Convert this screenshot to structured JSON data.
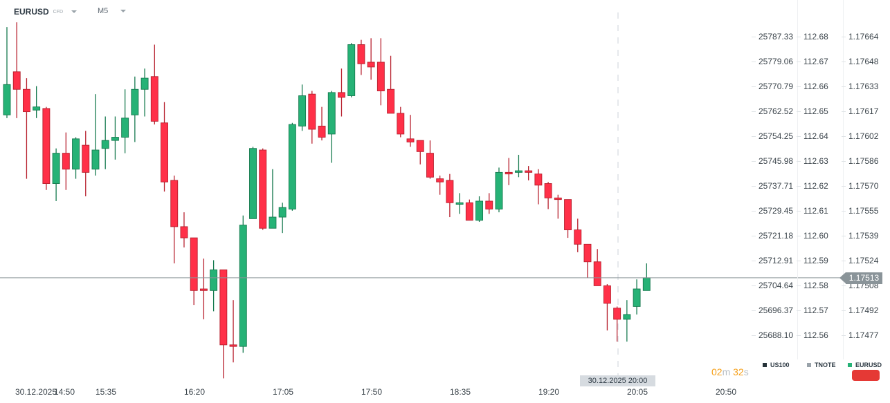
{
  "header": {
    "symbol": "EURUSD",
    "symbol_type": "CFD",
    "timeframe": "M5"
  },
  "colors": {
    "up": "#26b276",
    "up_border": "#167a4f",
    "down": "#ff3048",
    "down_border": "#b7202e",
    "price_line": "#8a9499",
    "countdown": "#f6a01a",
    "alert_button": "#e53935"
  },
  "axes": {
    "us100": [
      "25787.33",
      "25779.06",
      "25770.79",
      "25762.52",
      "25754.25",
      "25745.98",
      "25737.71",
      "25729.45",
      "25721.18",
      "25712.91",
      "25704.64",
      "25696.37",
      "25688.10"
    ],
    "tnote": [
      "112.68",
      "112.67",
      "112.66",
      "112.65",
      "112.64",
      "112.63",
      "112.62",
      "112.61",
      "112.60",
      "112.59",
      "112.58",
      "112.57",
      "112.56"
    ],
    "eurusd": [
      "1.17664",
      "1.17648",
      "1.17633",
      "1.17617",
      "1.17602",
      "1.17586",
      "1.17570",
      "1.17555",
      "1.17539",
      "1.17524",
      "1.17508",
      "1.17492",
      "1.17477"
    ]
  },
  "time_axis": [
    "30.12.2025",
    "14:50",
    "15:35",
    "16:20",
    "17:05",
    "17:50",
    "18:35",
    "19:20",
    "20:05",
    "20:50"
  ],
  "crosshair_label": "30.12.2025 20:00",
  "current_price": "1.17513",
  "countdown": {
    "min": "02",
    "min_unit": "m",
    "sec": "32",
    "sec_unit": "s"
  },
  "legend": [
    {
      "label": "US100",
      "color": "#263238"
    },
    {
      "label": "TNOTE",
      "color": "#9aa3aa"
    },
    {
      "label": "EURUSD",
      "color": "#26b276"
    }
  ],
  "chart_data": {
    "type": "candlestick",
    "symbol": "EURUSD",
    "interval": "5m",
    "first_time": "14:50",
    "ylim": [
      1.17445,
      1.1768
    ],
    "ohlc": [
      [
        1.17615,
        1.1767,
        1.17613,
        1.17634
      ],
      [
        1.17642,
        1.17673,
        1.17613,
        1.17631
      ],
      [
        1.17631,
        1.17638,
        1.17575,
        1.17617
      ],
      [
        1.17618,
        1.17633,
        1.17613,
        1.1762
      ],
      [
        1.17619,
        1.1762,
        1.17568,
        1.17572
      ],
      [
        1.17572,
        1.17594,
        1.17561,
        1.17591
      ],
      [
        1.17591,
        1.17604,
        1.17568,
        1.17581
      ],
      [
        1.17581,
        1.17601,
        1.17575,
        1.176
      ],
      [
        1.17596,
        1.17605,
        1.17564,
        1.17579
      ],
      [
        1.17581,
        1.17628,
        1.17577,
        1.17593
      ],
      [
        1.17594,
        1.17614,
        1.17581,
        1.17599
      ],
      [
        1.17599,
        1.17614,
        1.17587,
        1.17601
      ],
      [
        1.17601,
        1.17631,
        1.17591,
        1.17613
      ],
      [
        1.17615,
        1.17639,
        1.17598,
        1.17631
      ],
      [
        1.17631,
        1.17644,
        1.17614,
        1.17638
      ],
      [
        1.17639,
        1.17659,
        1.17609,
        1.17611
      ],
      [
        1.1761,
        1.17623,
        1.17567,
        1.17573
      ],
      [
        1.17574,
        1.17577,
        1.17522,
        1.17545
      ],
      [
        1.17545,
        1.17554,
        1.17532,
        1.17538
      ],
      [
        1.17538,
        1.17538,
        1.17496,
        1.17505
      ],
      [
        1.17506,
        1.17525,
        1.17487,
        1.17505
      ],
      [
        1.17505,
        1.17524,
        1.17492,
        1.17518
      ],
      [
        1.17518,
        1.17518,
        1.1745,
        1.17471
      ],
      [
        1.17471,
        1.17499,
        1.1746,
        1.1747
      ],
      [
        1.1747,
        1.17552,
        1.17466,
        1.17546
      ],
      [
        1.1755,
        1.17595,
        1.1755,
        1.17594
      ],
      [
        1.17593,
        1.17594,
        1.17543,
        1.17544
      ],
      [
        1.17544,
        1.17581,
        1.17544,
        1.17551
      ],
      [
        1.17551,
        1.1756,
        1.17541,
        1.17557
      ],
      [
        1.17556,
        1.1761,
        1.17555,
        1.17609
      ],
      [
        1.17608,
        1.17634,
        1.17605,
        1.17627
      ],
      [
        1.17628,
        1.1763,
        1.17597,
        1.17606
      ],
      [
        1.17608,
        1.1762,
        1.17599,
        1.17601
      ],
      [
        1.17603,
        1.1763,
        1.17585,
        1.17629
      ],
      [
        1.17629,
        1.17644,
        1.17614,
        1.17626
      ],
      [
        1.17627,
        1.1766,
        1.17626,
        1.17659
      ],
      [
        1.17659,
        1.17662,
        1.1764,
        1.17647
      ],
      [
        1.17648,
        1.17663,
        1.17637,
        1.17645
      ],
      [
        1.17648,
        1.17663,
        1.17621,
        1.1763
      ],
      [
        1.17631,
        1.17652,
        1.17616,
        1.17616
      ],
      [
        1.17616,
        1.1762,
        1.17601,
        1.17603
      ],
      [
        1.176,
        1.17615,
        1.17595,
        1.17598
      ],
      [
        1.17599,
        1.17599,
        1.17584,
        1.17592
      ],
      [
        1.17591,
        1.17599,
        1.17575,
        1.17576
      ],
      [
        1.17575,
        1.17577,
        1.17565,
        1.17573
      ],
      [
        1.17574,
        1.17578,
        1.17551,
        1.1756
      ],
      [
        1.17559,
        1.17566,
        1.17553,
        1.1756
      ],
      [
        1.1756,
        1.17562,
        1.17549,
        1.17549
      ],
      [
        1.17549,
        1.17564,
        1.17548,
        1.17561
      ],
      [
        1.17561,
        1.17566,
        1.17553,
        1.17556
      ],
      [
        1.17556,
        1.17582,
        1.17554,
        1.17579
      ],
      [
        1.17579,
        1.17588,
        1.17571,
        1.17578
      ],
      [
        1.17579,
        1.1759,
        1.17576,
        1.1758
      ],
      [
        1.1758,
        1.17583,
        1.17574,
        1.17579
      ],
      [
        1.17578,
        1.17581,
        1.17559,
        1.17571
      ],
      [
        1.17572,
        1.17573,
        1.17556,
        1.17563
      ],
      [
        1.17563,
        1.17565,
        1.1755,
        1.17562
      ],
      [
        1.17562,
        1.17562,
        1.17538,
        1.17543
      ],
      [
        1.17543,
        1.1755,
        1.17529,
        1.17534
      ],
      [
        1.17534,
        1.17534,
        1.17513,
        1.17523
      ],
      [
        1.17523,
        1.17531,
        1.17508,
        1.17508
      ],
      [
        1.17508,
        1.17509,
        1.1748,
        1.17497
      ],
      [
        1.17494,
        1.17495,
        1.17473,
        1.17487
      ],
      [
        1.17487,
        1.17499,
        1.17473,
        1.1749
      ],
      [
        1.17495,
        1.17512,
        1.1749,
        1.17506
      ],
      [
        1.17505,
        1.17522,
        1.17505,
        1.17513
      ]
    ]
  }
}
